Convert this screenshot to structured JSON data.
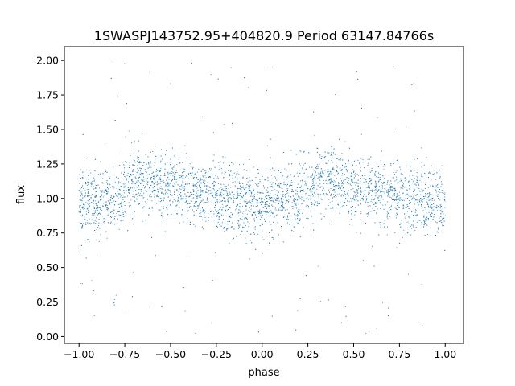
{
  "chart_data": {
    "type": "scatter",
    "title": "1SWASPJ143752.95+404820.9 Period 63147.84766s",
    "xlabel": "phase",
    "ylabel": "flux",
    "xlim": [
      -1.08,
      1.1
    ],
    "ylim": [
      -0.05,
      2.1
    ],
    "xticks": [
      -1.0,
      -0.75,
      -0.5,
      -0.25,
      0.0,
      0.25,
      0.5,
      0.75,
      1.0
    ],
    "xtick_labels": [
      "−1.00",
      "−0.75",
      "−0.50",
      "−0.25",
      "0.00",
      "0.25",
      "0.50",
      "0.75",
      "1.00"
    ],
    "yticks": [
      0.0,
      0.25,
      0.5,
      0.75,
      1.0,
      1.25,
      1.5,
      1.75,
      2.0
    ],
    "ytick_labels": [
      "0.00",
      "0.25",
      "0.50",
      "0.75",
      "1.00",
      "1.25",
      "1.50",
      "1.75",
      "2.00"
    ],
    "grid": false,
    "legend": "none",
    "marker_color": "#1f77b4",
    "x_range": [
      -1.0,
      1.0
    ],
    "y_range": [
      0.0,
      2.0
    ],
    "mean_flux_profile": {
      "phase": [
        -1.0,
        -0.9,
        -0.8,
        -0.7,
        -0.65,
        -0.6,
        -0.5,
        -0.4,
        -0.3,
        -0.2,
        -0.1,
        0.0,
        0.1,
        0.2,
        0.3,
        0.35,
        0.4,
        0.5,
        0.6,
        0.7,
        0.8,
        0.9,
        1.0
      ],
      "flux": [
        0.97,
        0.96,
        1.0,
        1.13,
        1.15,
        1.13,
        1.08,
        1.05,
        1.03,
        1.0,
        0.97,
        0.96,
        0.97,
        1.0,
        1.13,
        1.15,
        1.13,
        1.08,
        1.05,
        1.03,
        1.0,
        0.97,
        0.97
      ]
    },
    "scatter_sd": 0.12
  }
}
